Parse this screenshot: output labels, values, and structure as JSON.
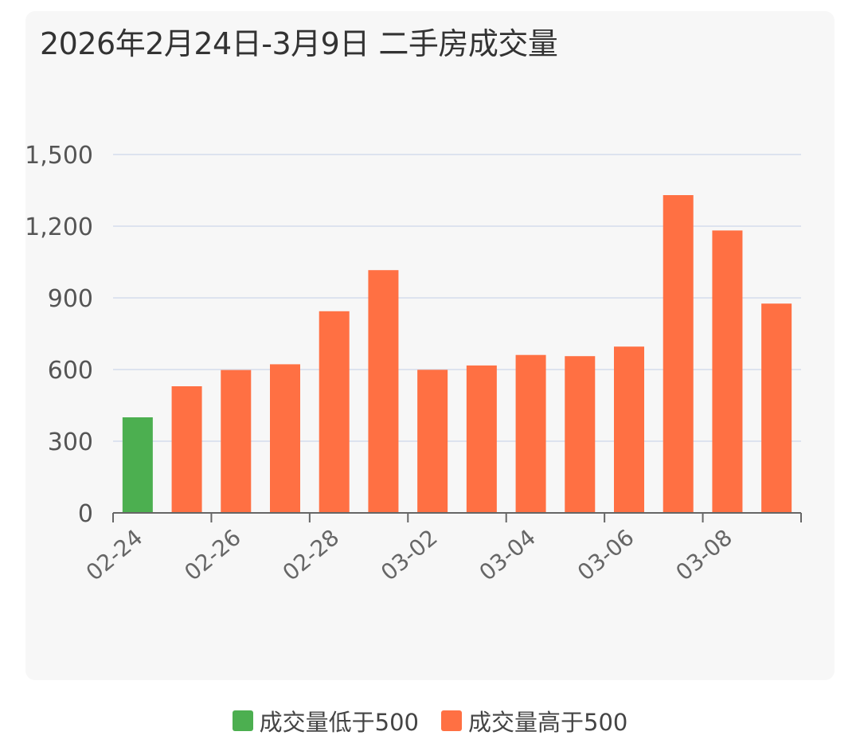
{
  "chart_data": {
    "type": "bar",
    "title": "2026年2月24日-3月9日 二手房成交量",
    "categories": [
      "02-24",
      "02-25",
      "02-26",
      "02-27",
      "02-28",
      "03-01",
      "03-02",
      "03-03",
      "03-04",
      "03-05",
      "03-06",
      "03-07",
      "03-08",
      "03-09"
    ],
    "values": [
      400,
      530,
      598,
      622,
      844,
      1016,
      599,
      617,
      661,
      656,
      696,
      1330,
      1182,
      876
    ],
    "ylim": [
      0,
      1500
    ],
    "yticks": [
      0,
      300,
      600,
      900,
      1200,
      1500
    ],
    "ytick_labels": [
      "0",
      "300",
      "600",
      "900",
      "1,200",
      "1,500"
    ],
    "xtick_labels": [
      "02-24",
      "02-26",
      "02-28",
      "03-02",
      "03-04",
      "03-06",
      "03-08"
    ],
    "threshold": 500,
    "grid": true,
    "legend_position": "bottom",
    "series": [
      {
        "name": "成交量低于500",
        "color": "#4caf50"
      },
      {
        "name": "成交量高于500",
        "color": "#ff7043"
      }
    ]
  }
}
